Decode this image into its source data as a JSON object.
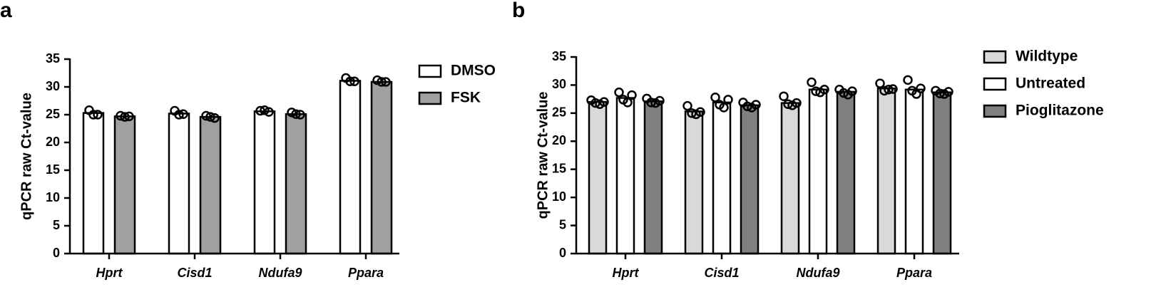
{
  "chart_data": [
    {
      "type": "bar",
      "label": "a",
      "y_label": "qPCR raw Ct-value",
      "categories": [
        "Hprt",
        "Cisd1",
        "Ndufa9",
        "Ppara"
      ],
      "ylim": [
        0,
        35
      ],
      "yticks": [
        0,
        5,
        10,
        15,
        20,
        25,
        30,
        35
      ],
      "series": [
        {
          "name": "DMSO",
          "color": "#ffffff",
          "values": [
            25.3,
            25.2,
            25.6,
            31.1
          ],
          "points": [
            [
              25.8,
              25.0,
              25.0
            ],
            [
              25.7,
              25.0,
              25.1
            ],
            [
              25.7,
              25.8,
              25.5
            ],
            [
              31.6,
              31.0,
              31.0
            ]
          ]
        },
        {
          "name": "FSK",
          "color": "#a0a0a0",
          "values": [
            24.7,
            24.6,
            25.1,
            30.9
          ],
          "points": [
            [
              24.8,
              24.6,
              24.7
            ],
            [
              24.8,
              24.6,
              24.4
            ],
            [
              25.4,
              25.1,
              25.0
            ],
            [
              31.2,
              30.9,
              30.9
            ]
          ]
        }
      ]
    },
    {
      "type": "bar",
      "label": "b",
      "y_label": "qPCR raw Ct-value",
      "categories": [
        "Hprt",
        "Cisd1",
        "Ndufa9",
        "Ppara"
      ],
      "ylim": [
        0,
        35
      ],
      "yticks": [
        0,
        5,
        10,
        15,
        20,
        25,
        30,
        35
      ],
      "series": [
        {
          "name": "Wildtype",
          "color": "#d9d9d9",
          "values": [
            27.0,
            25.3,
            26.8,
            29.4
          ],
          "points": [
            [
              27.3,
              26.8,
              26.6,
              27.0
            ],
            [
              26.3,
              25.0,
              24.8,
              25.2
            ],
            [
              28.0,
              26.6,
              26.4,
              26.8
            ],
            [
              30.3,
              29.0,
              29.2,
              29.3
            ]
          ]
        },
        {
          "name": "Untreated",
          "color": "#ffffff",
          "values": [
            27.7,
            26.9,
            29.2,
            29.2
          ],
          "points": [
            [
              28.7,
              27.4,
              26.9,
              28.2
            ],
            [
              27.8,
              26.5,
              26.0,
              27.4
            ],
            [
              30.5,
              28.9,
              28.7,
              29.2
            ],
            [
              30.9,
              29.0,
              28.4,
              29.4
            ]
          ]
        },
        {
          "name": "Pioglitazone",
          "color": "#808080",
          "values": [
            27.1,
            26.4,
            28.8,
            28.7
          ],
          "points": [
            [
              27.6,
              26.9,
              26.8,
              27.2
            ],
            [
              26.9,
              26.2,
              26.0,
              26.5
            ],
            [
              29.2,
              28.6,
              28.3,
              28.9
            ],
            [
              29.0,
              28.5,
              28.4,
              28.8
            ]
          ]
        }
      ]
    }
  ]
}
